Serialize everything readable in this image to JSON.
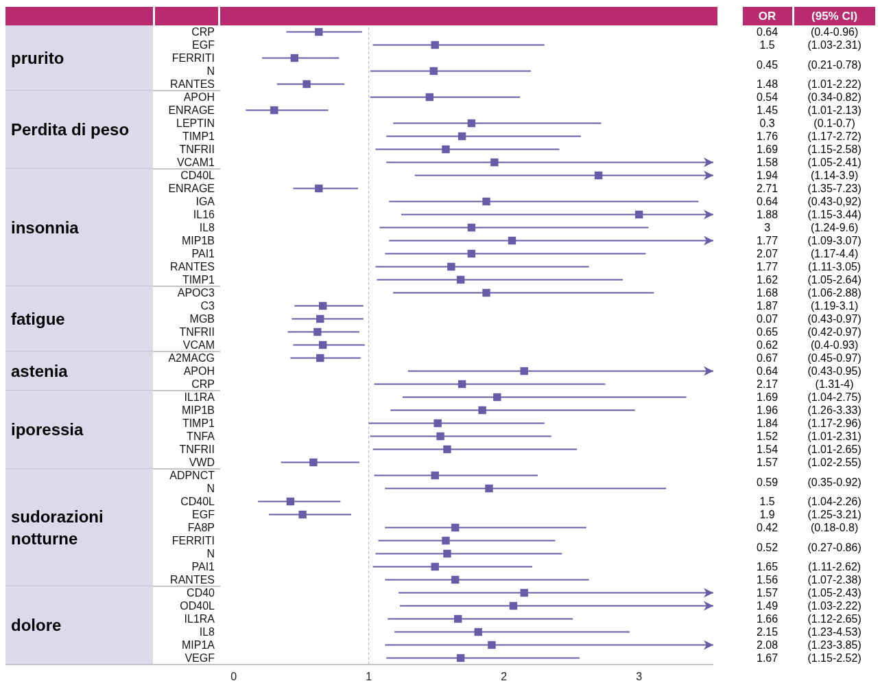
{
  "chart_data": [
    {
      "type": "other",
      "annotations": [
        "prurito",
        "Perdita di peso",
        "insonnia",
        "fatigue",
        "astenia",
        "iporessia",
        "sudorazioni notturne",
        "dolore"
      ]
    },
    {
      "type": "scatter",
      "orientation": "horizontal",
      "marker": "square",
      "xlim": [
        -0.1,
        3.55
      ],
      "xticks": [
        0,
        1,
        2,
        3
      ],
      "ref_lines": [
        {
          "axis": "x",
          "value": 1,
          "line_style": "dashed",
          "color": "#b0b0b0"
        }
      ],
      "categories": [
        "CRP",
        "EGF",
        "FERRITI",
        "N",
        "RANTES",
        "APOH",
        "ENRAGE",
        "LEPTIN",
        "TIMP1",
        "TNFRII",
        "VCAM1",
        "CD40L",
        "ENRAGE",
        "IGA",
        "IL16",
        "IL8",
        "MIP1B",
        "PAI1",
        "RANTES",
        "TIMP1",
        "APOC3",
        "C3",
        "MGB",
        "TNFRII",
        "VCAM",
        "A2MACG",
        "APOH",
        "CRP",
        "IL1RA",
        "MIP1B",
        "TIMP1",
        "TNFA",
        "TNFRII",
        "VWD",
        "ADPNCT",
        "N",
        "CD40L",
        "EGF",
        "FA8P",
        "FERRITI",
        "N",
        "PAI1",
        "RANTES",
        "CD40",
        "OD40L",
        "IL1RA",
        "IL8",
        "MIP1A",
        "VEGF"
      ],
      "series": [
        {
          "color": "#6a5ba8",
          "values": [
            0.63,
            1.49,
            0.45,
            1.48,
            0.54,
            null,
            null,
            null,
            null,
            null,
            null,
            null,
            null,
            null,
            null,
            null,
            null,
            null,
            null,
            null,
            null,
            null,
            null,
            null,
            null,
            null,
            null,
            null,
            null,
            null,
            null,
            null,
            null,
            null,
            null,
            null,
            null,
            null,
            null,
            null,
            null,
            null,
            null,
            null,
            null,
            null,
            null,
            null,
            null
          ],
          "errors": [
            [
              0.39,
              0.95
            ],
            [
              1.03,
              2.3
            ],
            [
              0.21,
              0.78
            ],
            [
              1.01,
              2.2
            ],
            [
              0.32,
              0.82
            ],
            null,
            null,
            null,
            null,
            null,
            null,
            null,
            null,
            null,
            null,
            null,
            null,
            null,
            null,
            null,
            null,
            null,
            null,
            null,
            null,
            null,
            null,
            null,
            null,
            null,
            null,
            null,
            null,
            null,
            null,
            null,
            null,
            null,
            null,
            null,
            null,
            null,
            null,
            null,
            null,
            null,
            null,
            null,
            null
          ]
        },
        {
          "color": "#6a5ba8",
          "values": [
            null,
            null,
            null,
            null,
            null,
            1.45,
            0.3,
            1.76,
            1.69,
            1.57,
            1.93,
            null,
            null,
            null,
            null,
            null,
            null,
            null,
            null,
            null,
            null,
            null,
            null,
            null,
            null,
            null,
            null,
            null,
            null,
            null,
            null,
            null,
            null,
            null,
            null,
            null,
            null,
            null,
            null,
            null,
            null,
            null,
            null,
            null,
            null,
            null,
            null,
            null,
            null
          ],
          "errors": [
            null,
            null,
            null,
            null,
            null,
            [
              1.01,
              2.12
            ],
            [
              0.09,
              0.7
            ],
            [
              1.18,
              2.72
            ],
            [
              1.13,
              2.57
            ],
            [
              1.05,
              2.41
            ],
            [
              1.13,
              3.55
            ],
            null,
            null,
            null,
            null,
            null,
            null,
            null,
            null,
            null,
            null,
            null,
            null,
            null,
            null,
            null,
            null,
            null,
            null,
            null,
            null,
            null,
            null,
            null,
            null,
            null,
            null,
            null,
            null,
            null,
            null,
            null,
            null,
            null,
            null,
            null,
            null,
            null,
            null
          ]
        },
        {
          "color": "#6a5ba8",
          "values": [
            null,
            null,
            null,
            null,
            null,
            null,
            null,
            null,
            null,
            null,
            null,
            2.7,
            0.63,
            1.87,
            3.0,
            1.76,
            2.06,
            1.76,
            1.61,
            1.68,
            null,
            null,
            null,
            null,
            null,
            null,
            null,
            null,
            null,
            null,
            null,
            null,
            null,
            null,
            null,
            null,
            null,
            null,
            null,
            null,
            null,
            null,
            null,
            null,
            null,
            null,
            null,
            null,
            null
          ],
          "errors": [
            null,
            null,
            null,
            null,
            null,
            null,
            null,
            null,
            null,
            null,
            null,
            [
              1.34,
              3.55
            ],
            [
              0.44,
              0.92
            ],
            [
              1.15,
              3.44
            ],
            [
              1.24,
              3.55
            ],
            [
              1.08,
              3.07
            ],
            [
              1.15,
              3.55
            ],
            [
              1.12,
              3.05
            ],
            [
              1.05,
              2.63
            ],
            [
              1.06,
              2.88
            ],
            null,
            null,
            null,
            null,
            null,
            null,
            null,
            null,
            null,
            null,
            null,
            null,
            null,
            null,
            null,
            null,
            null,
            null,
            null,
            null,
            null,
            null,
            null,
            null,
            null,
            null,
            null,
            null,
            null
          ]
        },
        {
          "color": "#6a5ba8",
          "values": [
            null,
            null,
            null,
            null,
            null,
            null,
            null,
            null,
            null,
            null,
            null,
            null,
            null,
            null,
            null,
            null,
            null,
            null,
            null,
            null,
            1.87,
            0.66,
            0.64,
            0.62,
            0.66,
            null,
            null,
            null,
            null,
            null,
            null,
            null,
            null,
            null,
            null,
            null,
            null,
            null,
            null,
            null,
            null,
            null,
            null,
            null,
            null,
            null,
            null,
            null,
            null
          ],
          "errors": [
            null,
            null,
            null,
            null,
            null,
            null,
            null,
            null,
            null,
            null,
            null,
            null,
            null,
            null,
            null,
            null,
            null,
            null,
            null,
            null,
            [
              1.18,
              3.11
            ],
            [
              0.45,
              0.96
            ],
            [
              0.43,
              0.96
            ],
            [
              0.4,
              0.93
            ],
            [
              0.44,
              0.97
            ],
            null,
            null,
            null,
            null,
            null,
            null,
            null,
            null,
            null,
            null,
            null,
            null,
            null,
            null,
            null,
            null,
            null,
            null,
            null,
            null,
            null,
            null,
            null,
            null
          ]
        },
        {
          "color": "#6a5ba8",
          "values": [
            null,
            null,
            null,
            null,
            null,
            null,
            null,
            null,
            null,
            null,
            null,
            null,
            null,
            null,
            null,
            null,
            null,
            null,
            null,
            null,
            null,
            null,
            null,
            null,
            null,
            0.64,
            2.15,
            1.69,
            null,
            null,
            null,
            null,
            null,
            null,
            null,
            null,
            null,
            null,
            null,
            null,
            null,
            null,
            null,
            null,
            null,
            null,
            null,
            null,
            null
          ],
          "errors": [
            null,
            null,
            null,
            null,
            null,
            null,
            null,
            null,
            null,
            null,
            null,
            null,
            null,
            null,
            null,
            null,
            null,
            null,
            null,
            null,
            null,
            null,
            null,
            null,
            null,
            [
              0.42,
              0.94
            ],
            [
              1.29,
              3.55
            ],
            [
              1.04,
              2.75
            ],
            null,
            null,
            null,
            null,
            null,
            null,
            null,
            null,
            null,
            null,
            null,
            null,
            null,
            null,
            null,
            null,
            null,
            null,
            null,
            null,
            null
          ]
        },
        {
          "color": "#6a5ba8",
          "values": [
            null,
            null,
            null,
            null,
            null,
            null,
            null,
            null,
            null,
            null,
            null,
            null,
            null,
            null,
            null,
            null,
            null,
            null,
            null,
            null,
            null,
            null,
            null,
            null,
            null,
            null,
            null,
            null,
            1.95,
            1.84,
            1.51,
            1.53,
            1.58,
            0.59,
            null,
            null,
            null,
            null,
            null,
            null,
            null,
            null,
            null,
            null,
            null,
            null,
            null,
            null,
            null
          ],
          "errors": [
            null,
            null,
            null,
            null,
            null,
            null,
            null,
            null,
            null,
            null,
            null,
            null,
            null,
            null,
            null,
            null,
            null,
            null,
            null,
            null,
            null,
            null,
            null,
            null,
            null,
            null,
            null,
            null,
            [
              1.25,
              3.35
            ],
            [
              1.16,
              2.97
            ],
            [
              1.0,
              2.3
            ],
            [
              1.01,
              2.35
            ],
            [
              1.03,
              2.54
            ],
            [
              0.35,
              0.93
            ],
            null,
            null,
            null,
            null,
            null,
            null,
            null,
            null,
            null,
            null,
            null,
            null,
            null,
            null,
            null
          ]
        },
        {
          "color": "#6a5ba8",
          "values": [
            null,
            null,
            null,
            null,
            null,
            null,
            null,
            null,
            null,
            null,
            null,
            null,
            null,
            null,
            null,
            null,
            null,
            null,
            null,
            null,
            null,
            null,
            null,
            null,
            null,
            null,
            null,
            null,
            null,
            null,
            null,
            null,
            null,
            null,
            1.49,
            1.89,
            0.42,
            0.51,
            1.64,
            1.57,
            1.58,
            1.49,
            1.64,
            null,
            null,
            null,
            null,
            null,
            null
          ],
          "errors": [
            null,
            null,
            null,
            null,
            null,
            null,
            null,
            null,
            null,
            null,
            null,
            null,
            null,
            null,
            null,
            null,
            null,
            null,
            null,
            null,
            null,
            null,
            null,
            null,
            null,
            null,
            null,
            null,
            null,
            null,
            null,
            null,
            null,
            null,
            [
              1.04,
              2.25
            ],
            [
              1.12,
              3.2
            ],
            [
              0.18,
              0.79
            ],
            [
              0.26,
              0.87
            ],
            [
              1.12,
              2.61
            ],
            [
              1.07,
              2.38
            ],
            [
              1.05,
              2.43
            ],
            [
              1.03,
              2.21
            ],
            [
              1.12,
              2.63
            ],
            null,
            null,
            null,
            null,
            null,
            null
          ]
        },
        {
          "color": "#6a5ba8",
          "values": [
            null,
            null,
            null,
            null,
            null,
            null,
            null,
            null,
            null,
            null,
            null,
            null,
            null,
            null,
            null,
            null,
            null,
            null,
            null,
            null,
            null,
            null,
            null,
            null,
            null,
            null,
            null,
            null,
            null,
            null,
            null,
            null,
            null,
            null,
            null,
            null,
            null,
            null,
            null,
            null,
            null,
            null,
            null,
            2.15,
            2.07,
            1.66,
            1.81,
            1.91,
            1.68
          ],
          "errors": [
            null,
            null,
            null,
            null,
            null,
            null,
            null,
            null,
            null,
            null,
            null,
            null,
            null,
            null,
            null,
            null,
            null,
            null,
            null,
            null,
            null,
            null,
            null,
            null,
            null,
            null,
            null,
            null,
            null,
            null,
            null,
            null,
            null,
            null,
            null,
            null,
            null,
            null,
            null,
            null,
            null,
            null,
            null,
            [
              1.22,
              3.55
            ],
            [
              1.23,
              3.55
            ],
            [
              1.14,
              2.51
            ],
            [
              1.19,
              2.93
            ],
            [
              1.12,
              3.55
            ],
            [
              1.13,
              2.56
            ]
          ]
        }
      ]
    },
    {
      "type": "other",
      "annotations": [
        "OR",
        "(95% CI)",
        "0.64",
        "(0.4-0.96)",
        "1.5",
        "(1.03-2.31)",
        "0.45",
        "(0.21-0.78)",
        null,
        null,
        "1.48",
        "(1.01-2.22)",
        "0.54",
        "(0.34-0.82)",
        "1.45",
        "(1.01-2.13)",
        "0.3",
        "(0.1-0.7)",
        "1.76",
        "(1.17-2.72)",
        "1.69",
        "(1.15-2.58)",
        "1.58",
        "(1.05-2.41)",
        "1.94",
        "(1.14-3.9)",
        "2.71",
        "(1.35-7.23)",
        "0.64",
        "(0.43-0,92)",
        "1.88",
        "(1.15-3.44)",
        "3",
        "(1.24-9.6)",
        "1.77",
        "(1.09-3.07)",
        "2.07",
        "(1.17-4.4)",
        "1.77",
        "(1.11-3.05)",
        "1.62",
        "(1.05-2.64)",
        "1.68",
        "(1.06-2.88)",
        "1.87",
        "(1.19-3.1)",
        "0.07",
        "(0.43-0.97)",
        "0.65",
        "(0.42-0.97)",
        "0.62",
        "(0.4-0.93)",
        "0.67",
        "(0.45-0.97)",
        "0.64",
        "(0.43-0.95)",
        "2.17",
        "(1.31-4)",
        "1.69",
        "(1.04-2.75)",
        "1.96",
        "(1.26-3.33)",
        "1.84",
        "(1.17-2.96)",
        "1.52",
        "(1.01-2.31)",
        "1.54",
        "(1.01-2.65)",
        "1.57",
        "(1.02-2.55)",
        "0.59",
        "(0.35-0.92)",
        null,
        null,
        "1.5",
        "(1.04-2.26)",
        "1.9",
        "(1.25-3.21)",
        "0.42",
        "(0.18-0.8)",
        "0.52",
        "(0.27-0.86)",
        null,
        null,
        "1.65",
        "(1.11-2.62)",
        "1.56",
        "(1.07-2.38)",
        "1.57",
        "(1.05-2.43)",
        "1.49",
        "(1.03-2.22)",
        "1.66",
        "(1.12-2.65)",
        "2.15",
        "(1.23-4.53)",
        "2.08",
        "(1.23-3.85)",
        "1.67",
        "(1.15-2.52)"
      ]
    }
  ]
}
